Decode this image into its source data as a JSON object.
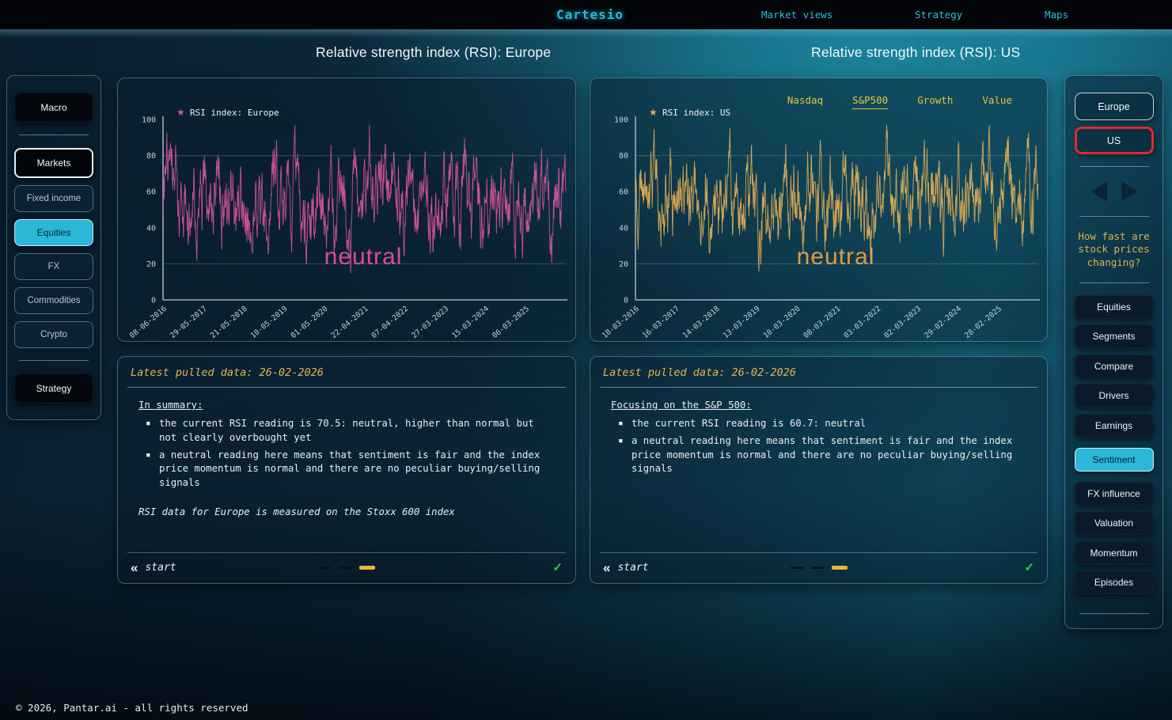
{
  "nav": {
    "logo": "Cartesio",
    "items": [
      "Market views",
      "Strategy",
      "Maps"
    ]
  },
  "titles": {
    "europe": "Relative strength index (RSI): Europe",
    "us": "Relative strength index (RSI): US"
  },
  "left_sidebar": {
    "groups": [
      [
        {
          "label": "Macro",
          "style": "solid"
        }
      ],
      [
        {
          "label": "Markets",
          "style": "outlined"
        },
        {
          "label": "Fixed income",
          "style": "muted"
        },
        {
          "label": "Equities",
          "style": "active"
        },
        {
          "label": "FX",
          "style": "muted"
        },
        {
          "label": "Commodities",
          "style": "muted"
        },
        {
          "label": "Crypto",
          "style": "muted"
        }
      ],
      [
        {
          "label": "Strategy",
          "style": "solid"
        }
      ]
    ]
  },
  "right_sidebar": {
    "regions": [
      {
        "label": "Europe",
        "style": "outlined-light"
      },
      {
        "label": "US",
        "style": "outlined-red"
      }
    ],
    "question": "How fast are stock prices changing?",
    "buttons": [
      {
        "label": "Equities",
        "style": "dark"
      },
      {
        "label": "Segments",
        "style": "dark"
      },
      {
        "label": "Compare",
        "style": "dark"
      },
      {
        "label": "Drivers",
        "style": "dark"
      },
      {
        "label": "Earnings",
        "style": "dark"
      },
      {
        "label": "Sentiment",
        "style": "active"
      },
      {
        "label": "FX influence",
        "style": "dark"
      },
      {
        "label": "Valuation",
        "style": "dark"
      },
      {
        "label": "Momentum",
        "style": "dark"
      },
      {
        "label": "Episodes",
        "style": "dark"
      }
    ]
  },
  "panels": {
    "europe": {
      "header": "Latest pulled data: 26-02-2026",
      "heading": "In summary:",
      "bullets": [
        "the current RSI reading is 70.5: neutral, higher than normal but not clearly overbought yet",
        "a neutral reading here means that sentiment is fair and the index price momentum is normal and there are no peculiar buying/selling signals"
      ],
      "note": "RSI data for Europe is measured on the Stoxx 600 index",
      "back_label": "start",
      "pagination": {
        "count": 3,
        "active_index": 2
      }
    },
    "us": {
      "header": "Latest pulled data: 26-02-2026",
      "heading": "Focusing on the S&P 500:",
      "bullets": [
        "the current RSI reading is 60.7: neutral",
        "a neutral reading here means that sentiment is fair and the index price momentum is normal and there are no peculiar buying/selling signals"
      ],
      "note": "",
      "back_label": "start",
      "pagination": {
        "count": 3,
        "active_index": 2
      }
    }
  },
  "footer": {
    "copyright": "© 2026, Pantar.ai - all rights reserved"
  },
  "colors": {
    "accent_cyan": "#2fc3de",
    "active_button_cyan": "#2ab7d8",
    "gold": "#e3b44a",
    "tab_gold": "#e7c33c",
    "europe_series": "#d9559e",
    "us_series": "#e6ae54",
    "red_border": "#e02b2b",
    "green_check": "#28cf4b"
  },
  "chart_data": [
    {
      "type": "line",
      "id": "europe",
      "legend": "RSI index: Europe",
      "series_color": "#d9559e",
      "annotation": {
        "text": "neutral",
        "color": "#ee4f9f"
      },
      "title": "Relative strength index (RSI): Europe",
      "xlabel": "",
      "ylabel": "",
      "ylim": [
        0,
        100
      ],
      "yticks": [
        0,
        20,
        40,
        60,
        80,
        100
      ],
      "gridlines": [
        20,
        80
      ],
      "x_tick_labels": [
        "08-06-2016",
        "29-05-2017",
        "21-05-2018",
        "10-05-2019",
        "01-05-2020",
        "22-04-2021",
        "07-04-2022",
        "27-03-2023",
        "15-03-2024",
        "06-03-2025"
      ],
      "current_value": 70.5,
      "value_range_observed": [
        8,
        96
      ],
      "legend_position": "top-left",
      "series": {
        "generator": "seeded-mean-reverting-noise",
        "seed": 20160608,
        "n": 1250,
        "start": 55,
        "mean": 55,
        "step": 26,
        "reversion": 0.16,
        "min": 6,
        "max": 97
      }
    },
    {
      "type": "line",
      "id": "us",
      "legend": "RSI index: US",
      "tabs": [
        "Nasdaq",
        "S&P500",
        "Growth",
        "Value"
      ],
      "active_tab": "S&P500",
      "series_color": "#e6ae54",
      "annotation": {
        "text": "neutral",
        "color": "#f0a246"
      },
      "title": "Relative strength index (RSI): US",
      "xlabel": "",
      "ylabel": "",
      "ylim": [
        0,
        100
      ],
      "yticks": [
        0,
        20,
        40,
        60,
        80,
        100
      ],
      "gridlines": [
        20,
        80
      ],
      "x_tick_labels": [
        "18-03-2016",
        "16-03-2017",
        "14-03-2018",
        "13-03-2019",
        "10-03-2020",
        "08-03-2021",
        "03-03-2022",
        "02-03-2023",
        "29-02-2024",
        "28-02-2025"
      ],
      "current_value": 60.7,
      "value_range_observed": [
        4,
        96
      ],
      "legend_position": "top-left",
      "series": {
        "generator": "seeded-mean-reverting-noise",
        "seed": 20160318,
        "n": 1250,
        "start": 60,
        "mean": 56,
        "step": 26,
        "reversion": 0.16,
        "min": 4,
        "max": 97
      }
    }
  ]
}
